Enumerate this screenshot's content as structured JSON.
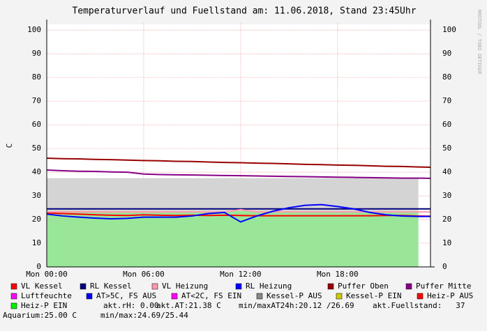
{
  "chart_data": {
    "type": "line",
    "title": "Temperaturverlauf und Fuellstand am: 11.06.2018, Stand 23:45Uhr",
    "y_label": "C",
    "side_text": "RRDTOOL / TOBI OETIKER",
    "x": [
      0,
      1,
      2,
      3,
      4,
      5,
      6,
      7,
      8,
      9,
      10,
      11,
      12,
      13,
      14,
      15,
      16,
      17,
      18,
      19,
      20,
      21,
      22,
      23,
      23.75
    ],
    "xlim": [
      0,
      23.75
    ],
    "xticks": [
      {
        "value": 0,
        "label": "Mon 00:00"
      },
      {
        "value": 6,
        "label": "Mon 06:00"
      },
      {
        "value": 12,
        "label": "Mon 12:00"
      },
      {
        "value": 18,
        "label": "Mon 18:00"
      }
    ],
    "ylim": [
      0,
      103
    ],
    "yticks": [
      0,
      10,
      20,
      30,
      40,
      50,
      60,
      70,
      80,
      90,
      100
    ],
    "grid": true,
    "series": [
      {
        "name": "VL Kessel",
        "color": "#ff0000",
        "kind": "line",
        "values": [
          22.8,
          22.5,
          22.3,
          22.0,
          21.8,
          21.7,
          22.0,
          21.8,
          21.7,
          21.8,
          21.7,
          21.8,
          21.7,
          21.6,
          21.6,
          21.6,
          21.6,
          21.6,
          21.6,
          21.6,
          21.6,
          21.7,
          21.7,
          21.5,
          21.4
        ]
      },
      {
        "name": "RL Kessel",
        "color": "#000080",
        "kind": "line",
        "values": [
          24.5,
          24.5,
          24.5,
          24.5,
          24.5,
          24.5,
          24.5,
          24.5,
          24.5,
          24.5,
          24.5,
          24.5,
          24.5,
          24.5,
          24.5,
          24.5,
          24.5,
          24.5,
          24.5,
          24.5,
          24.5,
          24.5,
          24.5,
          24.5,
          24.5
        ]
      },
      {
        "name": "VL Heizung",
        "color": "#ff99aa",
        "kind": "line",
        "values": [
          23.2,
          23.2,
          23.2,
          23.2,
          23.2,
          23.2,
          23.2,
          23.2,
          23.2,
          23.2,
          23.2,
          23.2,
          24.2,
          23.2,
          23.2,
          23.2,
          23.2,
          23.2,
          23.2,
          23.2,
          23.2,
          23.2,
          23.2,
          23.2,
          23.2
        ]
      },
      {
        "name": "RL Heizung",
        "color": "#0000ff",
        "kind": "line",
        "values": [
          22.3,
          21.5,
          21.0,
          20.6,
          20.3,
          20.5,
          21.0,
          21.0,
          21.0,
          21.5,
          22.5,
          23.0,
          19.0,
          21.5,
          23.5,
          25.0,
          26.0,
          26.3,
          25.5,
          24.5,
          23.0,
          22.0,
          21.5,
          21.3,
          21.3
        ]
      },
      {
        "name": "Puffer Oben",
        "color": "#990000",
        "kind": "line",
        "values": [
          45.9,
          45.7,
          45.6,
          45.4,
          45.3,
          45.1,
          44.9,
          44.8,
          44.6,
          44.5,
          44.3,
          44.1,
          44.0,
          43.8,
          43.7,
          43.5,
          43.3,
          43.2,
          43.0,
          42.9,
          42.7,
          42.5,
          42.4,
          42.2,
          42.1
        ]
      },
      {
        "name": "Puffer Mitte",
        "color": "#880088",
        "kind": "line",
        "values": [
          40.9,
          40.6,
          40.4,
          40.3,
          40.1,
          40.0,
          39.2,
          39.0,
          38.9,
          38.8,
          38.7,
          38.6,
          38.5,
          38.4,
          38.3,
          38.2,
          38.1,
          38.0,
          37.9,
          37.8,
          37.7,
          37.6,
          37.5,
          37.5,
          37.4
        ]
      },
      {
        "name": "Luftfeuchte",
        "color": "#ff00ff",
        "kind": "line"
      },
      {
        "name": "AT>5C, FS AUS",
        "color": "#0000ff",
        "kind": "line"
      },
      {
        "name": "AT<2C, FS EIN",
        "color": "#ff00ff",
        "kind": "line"
      },
      {
        "name": "Kessel-P AUS",
        "color": "#888888",
        "fill": "#d4d4d4",
        "kind": "area",
        "values": [
          37.5,
          37.5,
          37.5,
          37.5,
          37.5,
          37.5,
          37.5,
          37.5,
          37.5,
          37.5,
          37.5,
          37.5,
          37.5,
          37.5,
          37.5,
          37.5,
          37.5,
          37.5,
          37.5,
          37.5,
          37.5,
          37.5,
          37.5,
          37.5,
          null
        ]
      },
      {
        "name": "Kessel-P EIN",
        "color": "#cccc00",
        "kind": "line"
      },
      {
        "name": "Heiz-P AUS",
        "color": "#ff0000",
        "kind": "line"
      },
      {
        "name": "Heiz-P EIN",
        "color": "#00ee00",
        "fill": "#99e699",
        "kind": "area",
        "values": [
          23.5,
          23.5,
          23.5,
          23.5,
          23.5,
          23.5,
          23.5,
          23.5,
          23.5,
          23.5,
          23.5,
          23.5,
          23.5,
          23.5,
          23.5,
          23.5,
          23.5,
          23.5,
          23.5,
          23.5,
          23.5,
          23.5,
          23.5,
          23.5,
          null
        ]
      }
    ],
    "stats": [
      "akt.rH: 0.00",
      "akt.AT:21.38 C",
      "min/maxAT24h:20.12 /26.69",
      "akt.Fuellstand:   37",
      "Aquarium:25.00 C",
      "min/max:24.69/25.44"
    ]
  }
}
